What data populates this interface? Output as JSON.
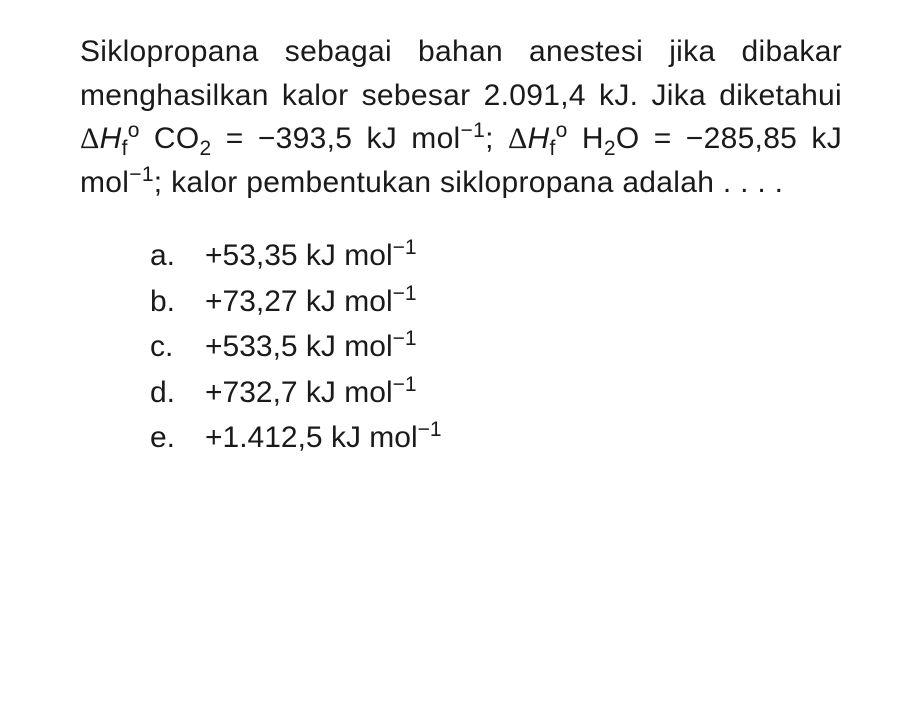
{
  "document": {
    "type": "document",
    "background_color": "#ffffff",
    "text_color": "#1a1a1a",
    "font_family": "Arial, Helvetica, sans-serif",
    "body_fontsize": 30,
    "line_height": 1.45
  },
  "question": {
    "line1": "Siklopropana sebagai bahan anestesi",
    "line2": "jika dibakar menghasilkan kalor sebesar",
    "line3_part1": "2.091,4 kJ. Jika diketahui ",
    "line3_delta": "Δ",
    "line3_H": "H",
    "line3_sub_f": "f",
    "line3_sup_o": "o",
    "line3_CO2": " CO",
    "line3_sub2": "2",
    "line4_part1": "= −393,5 kJ mol",
    "line4_sup_neg1": "−1",
    "line4_semicolon": "; ",
    "line4_delta": "Δ",
    "line4_H": "H",
    "line4_sub_f": "f",
    "line4_sup_o": "o",
    "line4_H2O": " H",
    "line4_sub_2": "2",
    "line4_O": "O =",
    "line5_part1": "−285,85 kJ mol",
    "line5_sup_neg1": "−1",
    "line5_part2": "; kalor pembentukan",
    "line6": "siklopropana adalah . . . ."
  },
  "options": {
    "a": {
      "letter": "a.",
      "value": "+53,35 kJ mol",
      "exp": "−1"
    },
    "b": {
      "letter": "b.",
      "value": "+73,27 kJ mol",
      "exp": "−1"
    },
    "c": {
      "letter": "c.",
      "value": "+533,5 kJ mol",
      "exp": "−1"
    },
    "d": {
      "letter": "d.",
      "value": "+732,7 kJ mol",
      "exp": "−1"
    },
    "e": {
      "letter": "e.",
      "value": "+1.412,5 kJ mol",
      "exp": "−1"
    }
  }
}
